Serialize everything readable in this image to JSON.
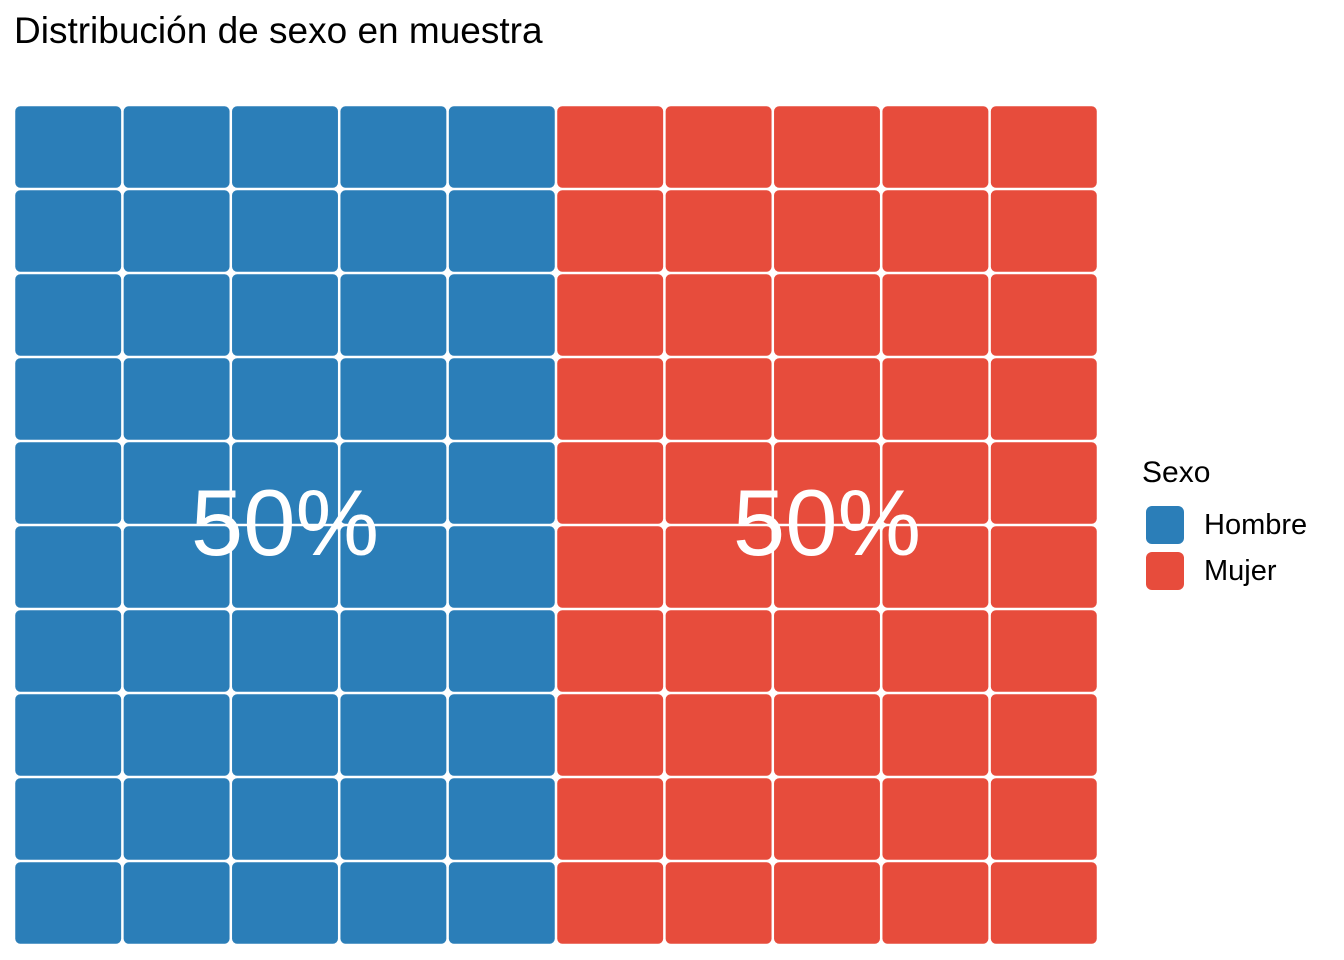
{
  "chart_data": {
    "type": "waffle",
    "title": "Distribución de sexo en muestra",
    "grid": {
      "columns": 10,
      "rows": 10
    },
    "legend": {
      "title": "Sexo",
      "position": "right"
    },
    "categories": [
      {
        "name": "Hombre",
        "count": 50,
        "percent_label": "50%",
        "color": "#2b7eb8"
      },
      {
        "name": "Mujer",
        "count": 50,
        "percent_label": "50%",
        "color": "#e74c3c"
      }
    ]
  }
}
